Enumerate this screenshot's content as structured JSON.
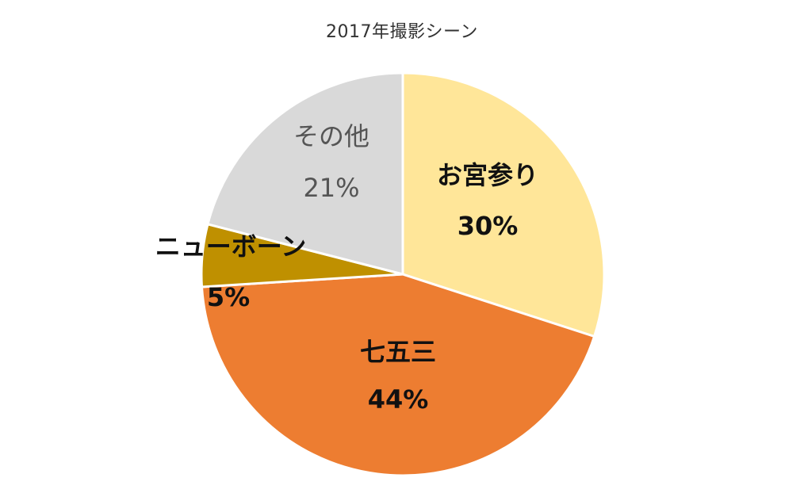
{
  "chart_data": {
    "type": "pie",
    "title": "2017年撮影シーン",
    "start_angle_deg": 0,
    "direction": "clockwise",
    "slices": [
      {
        "label": "お宮参り",
        "value": 30,
        "value_label": "30%",
        "color": "#FFE699",
        "label_style": "bold"
      },
      {
        "label": "七五三",
        "value": 44,
        "value_label": "44%",
        "color": "#ED7D31",
        "label_style": "bold"
      },
      {
        "label": "ニューボーン",
        "value": 5,
        "value_label": "5%",
        "color": "#BF9000",
        "label_style": "bold"
      },
      {
        "label": "その他",
        "value": 21,
        "value_label": "21%",
        "color": "#D9D9D9",
        "label_style": "light"
      }
    ]
  }
}
